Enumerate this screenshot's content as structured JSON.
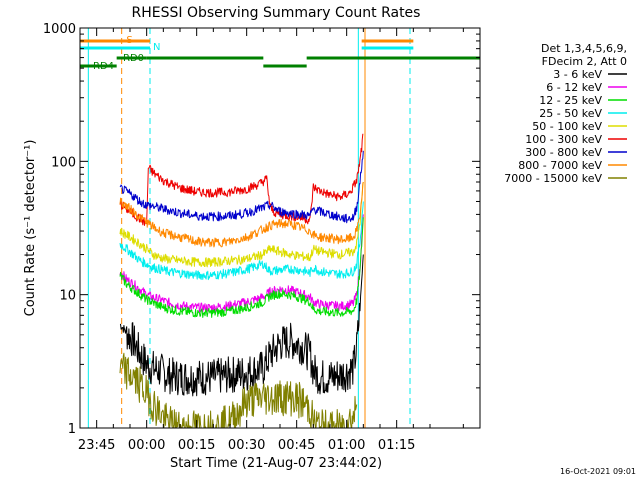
{
  "chart_data": {
    "type": "line",
    "title": "RHESSI Observing Summary Count Rates",
    "xlabel": "Start Time (21-Aug-07 23:44:02)",
    "ylabel": "Count Rate (s⁻¹ detector⁻¹)",
    "y_scale": "log",
    "ylim": [
      1,
      1000
    ],
    "xlim_minutes": [
      -20,
      100
    ],
    "x_ticks": [
      {
        "v": -15,
        "label": "23:45"
      },
      {
        "v": 0,
        "label": "00:00"
      },
      {
        "v": 15,
        "label": "00:15"
      },
      {
        "v": 30,
        "label": "00:30"
      },
      {
        "v": 45,
        "label": "00:45"
      },
      {
        "v": 60,
        "label": "01:00"
      },
      {
        "v": 75,
        "label": "01:15"
      }
    ],
    "y_ticks": [
      {
        "v": 1,
        "label": "1"
      },
      {
        "v": 10,
        "label": "10"
      },
      {
        "v": 100,
        "label": "100"
      },
      {
        "v": 1000,
        "label": "1000"
      }
    ],
    "legend": {
      "header": [
        "Det 1,3,4,5,6,9,",
        "FDecim 2, Att 0"
      ],
      "position": "right"
    },
    "series": [
      {
        "name": "3 - 6 keV",
        "color": "#000000",
        "x": [
          -8,
          -6,
          -4,
          -2,
          0,
          2,
          4,
          6,
          10,
          15,
          20,
          25,
          30,
          35,
          37,
          40,
          43,
          46,
          49,
          50,
          52,
          55,
          58,
          60,
          62,
          63,
          64,
          65
        ],
        "y": [
          6,
          5.2,
          4.5,
          3.6,
          3,
          2.8,
          2.7,
          2.5,
          2.4,
          2.4,
          2.4,
          2.5,
          2.6,
          2.8,
          3.5,
          4.3,
          4.5,
          4.2,
          3.6,
          2.7,
          2.4,
          2.4,
          2.5,
          2.6,
          2.8,
          4,
          8,
          20
        ]
      },
      {
        "name": "6 - 12 keV",
        "color": "#ee00ee",
        "x": [
          -8,
          -6,
          -4,
          -2,
          0,
          2,
          4,
          6,
          10,
          15,
          20,
          25,
          30,
          35,
          37,
          40,
          43,
          46,
          49,
          50,
          52,
          55,
          58,
          60,
          62,
          63,
          64,
          65
        ],
        "y": [
          15,
          13,
          12,
          11,
          10,
          9.5,
          9.2,
          8.8,
          8.3,
          8,
          8,
          8.3,
          8.8,
          9.6,
          10.5,
          11,
          10.8,
          10.3,
          9.6,
          8.8,
          8.5,
          8.3,
          8.2,
          8.3,
          8.6,
          10,
          16,
          40
        ]
      },
      {
        "name": "12 - 25 keV",
        "color": "#00dd00",
        "x": [
          -8,
          -6,
          -4,
          -2,
          0,
          2,
          4,
          6,
          10,
          15,
          20,
          25,
          30,
          35,
          37,
          40,
          43,
          46,
          49,
          50,
          52,
          55,
          58,
          60,
          62,
          63,
          64,
          65
        ],
        "y": [
          14,
          12,
          11,
          10,
          9.2,
          8.7,
          8.2,
          7.9,
          7.5,
          7.3,
          7.3,
          7.5,
          8,
          8.8,
          9.8,
          10.2,
          10,
          9.5,
          8.8,
          7.8,
          7.5,
          7.4,
          7.3,
          7.4,
          7.6,
          9,
          15,
          38
        ]
      },
      {
        "name": "25 - 50 keV",
        "color": "#00eeee",
        "x": [
          -8,
          -6,
          -4,
          -2,
          0,
          2,
          4,
          6,
          10,
          15,
          20,
          25,
          30,
          35,
          37,
          40,
          43,
          46,
          49,
          50,
          52,
          55,
          58,
          60,
          62,
          63,
          64,
          65
        ],
        "y": [
          24,
          22,
          20,
          18,
          17,
          16,
          15.5,
          15,
          14.5,
          14,
          14,
          14.5,
          15.5,
          17,
          15,
          15.3,
          15.6,
          15.3,
          14.6,
          16,
          15,
          14.5,
          14.3,
          14.5,
          15,
          17,
          25,
          50
        ]
      },
      {
        "name": "50 - 100 keV",
        "color": "#dddd00",
        "x": [
          -8,
          -6,
          -4,
          -2,
          0,
          2,
          4,
          6,
          10,
          15,
          20,
          25,
          30,
          35,
          37,
          40,
          43,
          46,
          49,
          50,
          52,
          55,
          58,
          60,
          62,
          63,
          64,
          65
        ],
        "y": [
          30,
          28,
          26,
          24,
          22,
          20,
          19,
          18.5,
          18,
          17.5,
          17.5,
          18,
          18.5,
          20,
          22,
          21,
          20,
          19.5,
          19,
          22,
          21,
          20.5,
          20,
          20.5,
          21,
          24,
          35,
          70
        ]
      },
      {
        "name": "100 - 300 keV",
        "color": "#ee0000",
        "x": [
          -8,
          -6,
          -4,
          -2,
          0,
          0.5,
          2,
          5,
          10,
          15,
          20,
          25,
          30,
          34,
          36,
          37,
          38,
          40,
          43,
          46,
          48,
          49,
          50,
          52,
          55,
          58,
          61,
          63,
          64,
          65
        ],
        "y": [
          48,
          44,
          40,
          37,
          34,
          90,
          82,
          72,
          63,
          59,
          58,
          59,
          62,
          68,
          74,
          46,
          42,
          40,
          39,
          38,
          37,
          36,
          64,
          60,
          56,
          54,
          58,
          72,
          100,
          160
        ]
      },
      {
        "name": "300 - 800 keV",
        "color": "#0000cc",
        "x": [
          -8,
          -6,
          -4,
          -2,
          0,
          2,
          5,
          10,
          15,
          20,
          25,
          30,
          35,
          37,
          40,
          43,
          46,
          49,
          50,
          52,
          55,
          58,
          60,
          62,
          63,
          64,
          65
        ],
        "y": [
          63,
          59,
          55,
          50,
          47,
          46,
          44,
          41,
          39,
          38.5,
          39,
          41,
          45,
          47,
          42,
          41,
          40,
          39,
          44,
          42,
          40,
          38,
          37,
          38,
          45,
          70,
          120
        ]
      },
      {
        "name": "800 - 7000 keV",
        "color": "#ff8800",
        "x": [
          -8,
          -6,
          -4,
          -2,
          0,
          2,
          5,
          10,
          15,
          20,
          25,
          30,
          35,
          37,
          40,
          43,
          46,
          49,
          50,
          52,
          55,
          58,
          60,
          62,
          63,
          64,
          65
        ],
        "y": [
          50,
          46,
          42,
          38,
          35,
          32,
          29,
          27,
          25,
          24.5,
          25,
          27,
          31,
          33,
          34,
          34,
          32,
          30,
          28,
          27,
          26.5,
          26,
          26,
          27,
          30,
          40,
          70
        ]
      },
      {
        "name": "7000 - 15000 keV",
        "color": "#808000",
        "x": [
          -8,
          -6,
          -4,
          -2,
          0,
          2,
          4,
          6,
          10,
          15,
          20,
          25,
          30,
          35,
          37,
          40,
          43,
          46,
          49,
          50,
          52,
          55,
          58,
          60,
          62,
          63
        ],
        "y": [
          2.8,
          2.6,
          2.4,
          2.1,
          1.8,
          1.5,
          1.3,
          1.1,
          1,
          1,
          1,
          1.1,
          1.6,
          1.7,
          1.7,
          1.7,
          1.7,
          1.6,
          1.4,
          1.1,
          1,
          1,
          1,
          1.1,
          1.2,
          1.5
        ]
      }
    ],
    "annotations": [
      {
        "text": "S",
        "color": "#ff8800",
        "x": -7
      },
      {
        "text": "N",
        "color": "#00eeee",
        "x": 1
      },
      {
        "text": "RD0",
        "color": "#008000",
        "x": -8
      },
      {
        "text": "RD4",
        "color": "#008000",
        "x": -17
      }
    ],
    "markers": {
      "saa_bars": [
        {
          "x0": -20,
          "x1": 1,
          "color": "#ff8800"
        },
        {
          "x0": 64.5,
          "x1": 80,
          "color": "#ff8800"
        }
      ],
      "night_bars": [
        {
          "x0": -20,
          "x1": 1,
          "color": "#00eeee"
        },
        {
          "x0": 64.5,
          "x1": 80,
          "color": "#00eeee"
        }
      ],
      "decim_bars": [
        {
          "x0": -20,
          "x1": -9,
          "color": "#008000",
          "level": "low"
        },
        {
          "x0": -9,
          "x1": 0,
          "color": "#008000",
          "level": "high"
        },
        {
          "x0": 0,
          "x1": 35,
          "color": "#008000",
          "level": "high"
        },
        {
          "x0": 35,
          "x1": 48,
          "color": "#008000",
          "level": "low"
        },
        {
          "x0": 48,
          "x1": 100,
          "color": "#008000",
          "level": "high"
        }
      ],
      "vlines": [
        {
          "x": -17.5,
          "color": "#00eeee",
          "style": "solid"
        },
        {
          "x": -7.5,
          "color": "#ff8800",
          "style": "dash"
        },
        {
          "x": 1,
          "color": "#00eeee",
          "style": "dash"
        },
        {
          "x": 63.5,
          "color": "#00eeee",
          "style": "solid"
        },
        {
          "x": 65.5,
          "color": "#ff8800",
          "style": "solid"
        },
        {
          "x": 79,
          "color": "#00eeee",
          "style": "dash"
        }
      ]
    },
    "footer_timestamp": "16-Oct-2021 09:01"
  }
}
